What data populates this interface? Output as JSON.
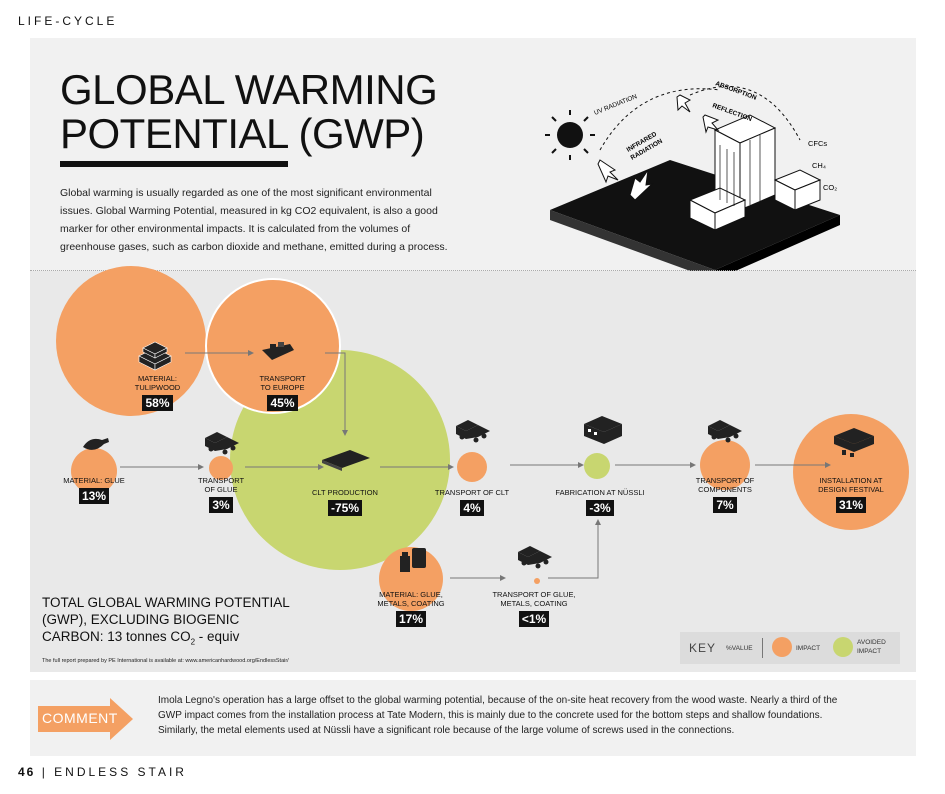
{
  "header": {
    "section": "LIFE-CYCLE"
  },
  "title": {
    "line1": "GLOBAL WARMING",
    "line2": "POTENTIAL (GWP)"
  },
  "intro": "Global warming is usually regarded as one of the most significant environmental issues. Global Warming Potential, measured in kg CO2 equivalent, is also a good marker for other environmental impacts. It is calculated from the volumes of greenhouse gases, such as carbon dioxide and methane, emitted during a process.",
  "illustration": {
    "labels": {
      "uv": "UV RADIATION",
      "infrared1": "INFRARED",
      "infrared2": "RADIATION",
      "absorption": "ABSORPTION",
      "reflection": "REFLECTION",
      "cfcs": "CFCs",
      "ch4": "CH₄",
      "co2": "CO₂"
    }
  },
  "nodes": {
    "tulipwood": {
      "label1": "MATERIAL:",
      "label2": "TULIPWOOD",
      "value": "58%"
    },
    "transport_europe": {
      "label1": "TRANSPORT",
      "label2": "TO EUROPE",
      "value": "45%"
    },
    "glue": {
      "label1": "MATERIAL: GLUE",
      "value": "13%"
    },
    "transport_glue": {
      "label1": "TRANSPORT",
      "label2": "OF GLUE",
      "value": "3%"
    },
    "clt_production": {
      "label1": "CLT PRODUCTION",
      "value": "-75%"
    },
    "transport_clt": {
      "label1": "TRANSPORT OF CLT",
      "value": "4%"
    },
    "fabrication": {
      "label1": "FABRICATION AT NÜSSLI",
      "value": "-3%"
    },
    "transport_components": {
      "label1": "TRANSPORT OF",
      "label2": "COMPONENTS",
      "value": "7%"
    },
    "installation": {
      "label1": "INSTALLATION AT",
      "label2": "DESIGN FESTIVAL",
      "value": "31%"
    },
    "glue_metals": {
      "label1": "MATERIAL: GLUE,",
      "label2": "METALS, COATING",
      "value": "17%"
    },
    "transport_glue_metals": {
      "label1": "TRANSPORT OF GLUE,",
      "label2": "METALS, COATING",
      "value": "<1%"
    }
  },
  "total": {
    "line1": "TOTAL GLOBAL WARMING POTENTIAL",
    "line2": "(GWP), EXCLUDING BIOGENIC",
    "line3_prefix": "CARBON:",
    "line3_value": "13 tonnes CO",
    "line3_sub": "2",
    "line3_suffix": " - equiv",
    "note": "The full report prepared by PE International is available at: www.americanhardwood.org/EndlessStair/"
  },
  "key": {
    "title": "KEY",
    "value_label": "%VALUE",
    "impact": "IMPACT",
    "avoided1": "AVOIDED",
    "avoided2": "IMPACT"
  },
  "colors": {
    "impact": "#f4a063",
    "avoided": "#c8d670",
    "comment": "#f4a063"
  },
  "comment": {
    "button": "COMMENT",
    "text": "Imola Legno's operation has a large offset to the global warming potential, because of the on-site heat recovery from the wood waste. Nearly a third of the GWP impact comes from the installation process at Tate Modern, this is mainly due to the concrete used for the bottom steps and shallow foundations. Similarly, the metal elements used at Nüssli have a significant role because of the large volume of screws used in the connections."
  },
  "footer": {
    "page": "46",
    "separator": "|",
    "title": "ENDLESS STAIR"
  }
}
